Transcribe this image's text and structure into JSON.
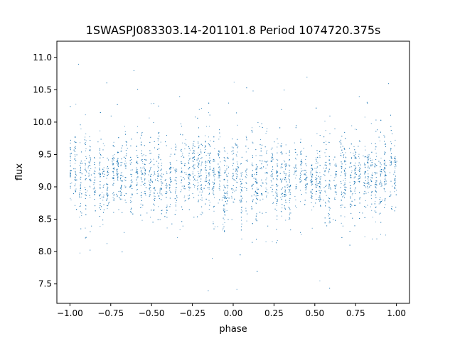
{
  "chart_data": {
    "type": "scatter",
    "title": "1SWASPJ083303.14-201101.8 Period 1074720.375s",
    "xlabel": "phase",
    "ylabel": "flux",
    "xlim": [
      -1.08,
      1.08
    ],
    "ylim": [
      7.2,
      11.25
    ],
    "x_ticks": [
      -1.0,
      -0.75,
      -0.5,
      -0.25,
      0.0,
      0.25,
      0.5,
      0.75,
      1.0
    ],
    "x_tick_labels": [
      "−1.00",
      "−0.75",
      "−0.50",
      "−0.25",
      "0.00",
      "0.25",
      "0.50",
      "0.75",
      "1.00"
    ],
    "y_ticks": [
      7.5,
      8.0,
      8.5,
      9.0,
      9.5,
      10.0,
      10.5,
      11.0
    ],
    "y_tick_labels": [
      "7.5",
      "8.0",
      "8.5",
      "9.0",
      "9.5",
      "10.0",
      "10.5",
      "11.0"
    ],
    "grid": false,
    "marker_color": "#1f77b4",
    "series": [
      {
        "values_summary_x_range": [
          -1.0,
          1.0
        ],
        "values_summary_y_range": [
          7.4,
          11.1
        ],
        "y_median": 9.15,
        "core_band": [
          8.5,
          9.8
        ],
        "points": [
          [
            -1.0,
            9.2
          ],
          [
            -0.98,
            8.9
          ],
          [
            -0.96,
            9.5
          ],
          [
            -0.95,
            10.9
          ],
          [
            -0.93,
            8.6
          ],
          [
            -0.91,
            9.0
          ],
          [
            -0.89,
            9.3
          ],
          [
            -0.87,
            8.4
          ],
          [
            -0.85,
            9.1
          ],
          [
            -0.83,
            9.7
          ],
          [
            -0.81,
            8.7
          ],
          [
            -0.79,
            9.2
          ],
          [
            -0.77,
            9.0
          ],
          [
            -0.75,
            10.1
          ],
          [
            -0.73,
            8.8
          ],
          [
            -0.71,
            9.4
          ],
          [
            -0.69,
            9.1
          ],
          [
            -0.67,
            8.3
          ],
          [
            -0.65,
            9.6
          ],
          [
            -0.63,
            9.2
          ],
          [
            -0.61,
            10.8
          ],
          [
            -0.59,
            8.9
          ],
          [
            -0.57,
            9.3
          ],
          [
            -0.55,
            9.5
          ],
          [
            -0.53,
            8.6
          ],
          [
            -0.51,
            9.1
          ],
          [
            -0.49,
            10.0
          ],
          [
            -0.47,
            9.4
          ],
          [
            -0.45,
            8.5
          ],
          [
            -0.43,
            9.2
          ],
          [
            -0.41,
            9.8
          ],
          [
            -0.39,
            8.7
          ],
          [
            -0.37,
            9.3
          ],
          [
            -0.35,
            9.0
          ],
          [
            -0.33,
            10.4
          ],
          [
            -0.31,
            8.4
          ],
          [
            -0.29,
            9.2
          ],
          [
            -0.27,
            9.6
          ],
          [
            -0.25,
            8.9
          ],
          [
            -0.23,
            9.1
          ],
          [
            -0.21,
            10.2
          ],
          [
            -0.19,
            8.6
          ],
          [
            -0.17,
            9.4
          ],
          [
            -0.15,
            9.0
          ],
          [
            -0.13,
            7.9
          ],
          [
            -0.11,
            9.2
          ],
          [
            -0.09,
            9.5
          ],
          [
            -0.07,
            8.8
          ],
          [
            -0.05,
            9.0
          ],
          [
            -0.03,
            10.3
          ],
          [
            -0.01,
            8.5
          ],
          [
            0.01,
            9.1
          ],
          [
            0.03,
            9.3
          ],
          [
            0.05,
            8.2
          ],
          [
            0.07,
            9.0
          ],
          [
            0.09,
            9.6
          ],
          [
            0.11,
            8.7
          ],
          [
            0.13,
            9.2
          ],
          [
            0.15,
            10.0
          ],
          [
            0.17,
            8.9
          ],
          [
            0.19,
            9.4
          ],
          [
            0.21,
            8.4
          ],
          [
            0.23,
            9.1
          ],
          [
            0.25,
            9.7
          ],
          [
            0.27,
            8.8
          ],
          [
            0.29,
            9.3
          ],
          [
            0.31,
            10.5
          ],
          [
            0.33,
            9.0
          ],
          [
            0.35,
            8.6
          ],
          [
            0.37,
            9.2
          ],
          [
            0.39,
            9.5
          ],
          [
            0.41,
            8.3
          ],
          [
            0.43,
            9.6
          ],
          [
            0.45,
            10.7
          ],
          [
            0.47,
            9.1
          ],
          [
            0.49,
            8.7
          ],
          [
            0.51,
            9.4
          ],
          [
            0.53,
            9.8
          ],
          [
            0.55,
            8.8
          ],
          [
            0.57,
            9.3
          ],
          [
            0.59,
            10.1
          ],
          [
            0.61,
            8.5
          ],
          [
            0.63,
            9.2
          ],
          [
            0.65,
            9.7
          ],
          [
            0.67,
            8.4
          ],
          [
            0.69,
            9.0
          ],
          [
            0.71,
            9.6
          ],
          [
            0.73,
            8.9
          ],
          [
            0.75,
            9.3
          ],
          [
            0.77,
            10.4
          ],
          [
            0.79,
            8.6
          ],
          [
            0.81,
            9.1
          ],
          [
            0.83,
            9.5
          ],
          [
            0.85,
            8.2
          ],
          [
            0.87,
            9.0
          ],
          [
            0.89,
            9.4
          ],
          [
            0.91,
            8.8
          ],
          [
            0.93,
            9.2
          ],
          [
            0.95,
            10.6
          ],
          [
            0.97,
            8.7
          ],
          [
            0.99,
            9.1
          ],
          [
            1.0,
            9.4
          ]
        ]
      }
    ]
  }
}
